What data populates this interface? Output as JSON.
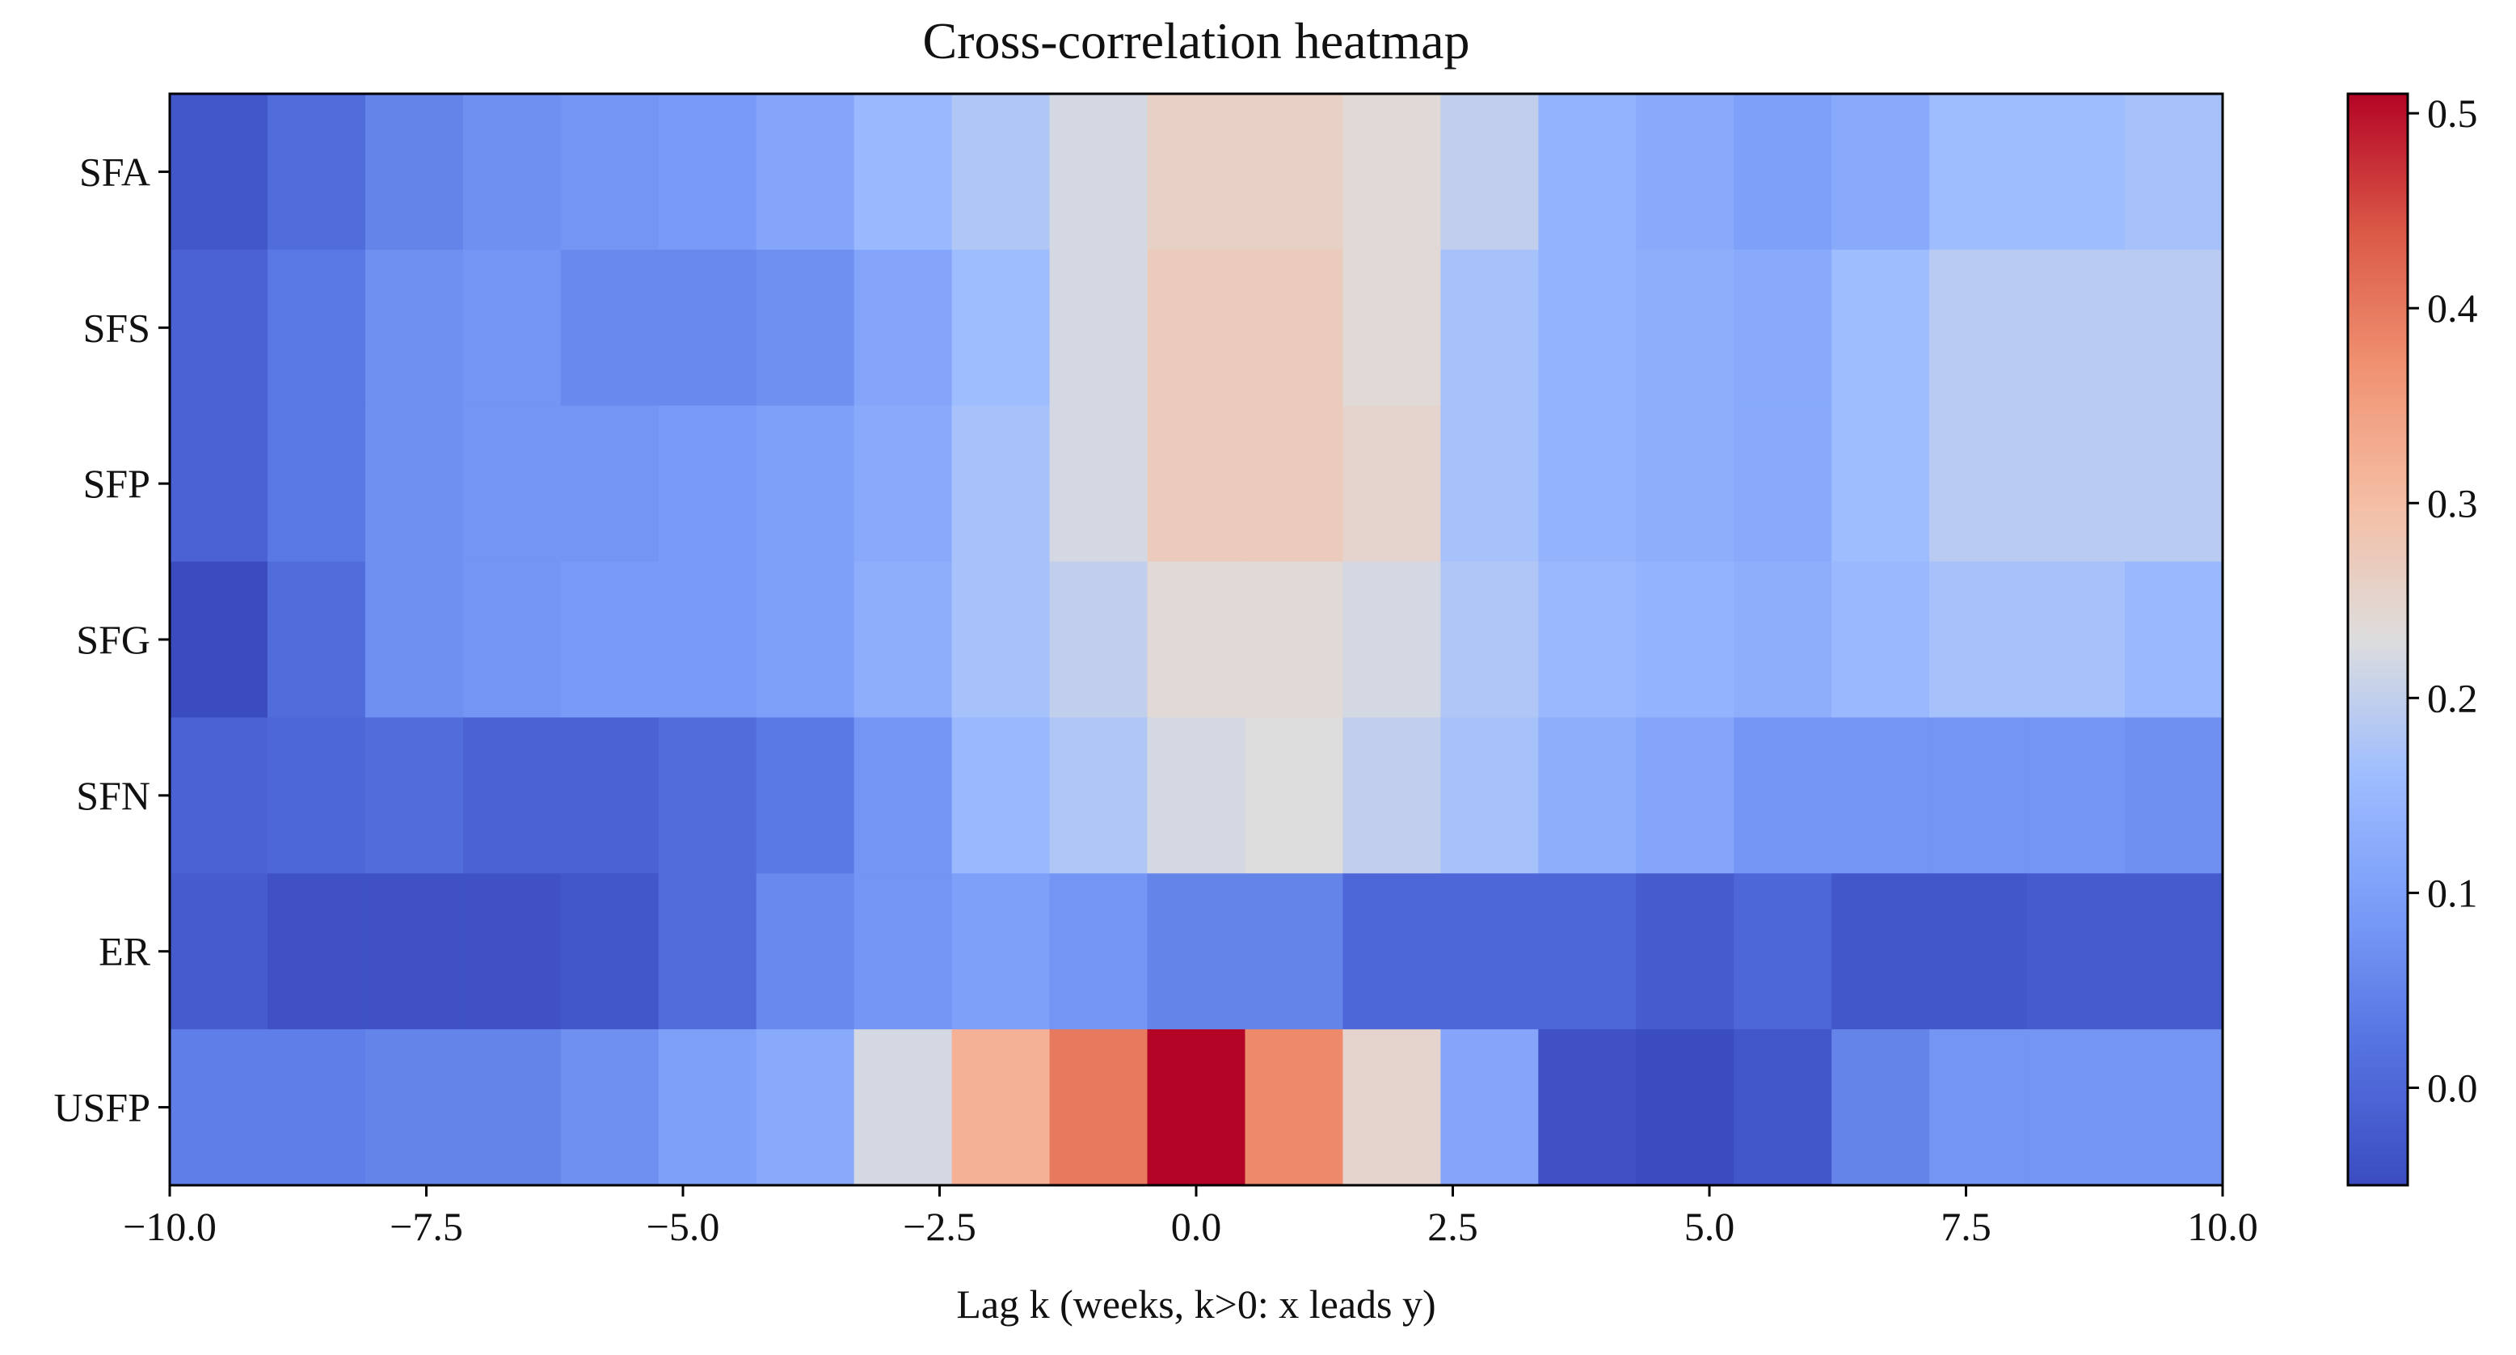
{
  "chart_data": {
    "type": "heatmap",
    "title": "Cross-correlation heatmap",
    "xlabel": "Lag k (weeks, k>0: x leads y)",
    "ylabel": "",
    "xlim": [
      -10.0,
      10.0
    ],
    "x_ticks": [
      -10.0,
      -7.5,
      -5.0,
      -2.5,
      0.0,
      2.5,
      5.0,
      7.5,
      10.0
    ],
    "x_tick_labels": [
      "−10.0",
      "−7.5",
      "−5.0",
      "−2.5",
      "0.0",
      "2.5",
      "5.0",
      "7.5",
      "10.0"
    ],
    "lags": [
      -10,
      -9,
      -8,
      -7,
      -6,
      -5,
      -4,
      -3,
      -2,
      -1,
      0,
      1,
      2,
      3,
      4,
      5,
      6,
      7,
      8,
      9,
      10
    ],
    "rows": [
      "SFA",
      "SFS",
      "SFP",
      "SFG",
      "SFN",
      "ER",
      "USFP"
    ],
    "values": [
      [
        -0.03,
        0.01,
        0.05,
        0.07,
        0.08,
        0.09,
        0.11,
        0.15,
        0.18,
        0.22,
        0.26,
        0.26,
        0.24,
        0.2,
        0.14,
        0.12,
        0.1,
        0.12,
        0.16,
        0.16,
        0.17
      ],
      [
        -0.01,
        0.03,
        0.07,
        0.08,
        0.06,
        0.06,
        0.07,
        0.11,
        0.16,
        0.22,
        0.27,
        0.27,
        0.24,
        0.17,
        0.14,
        0.13,
        0.12,
        0.16,
        0.19,
        0.19,
        0.19
      ],
      [
        -0.01,
        0.03,
        0.07,
        0.08,
        0.08,
        0.09,
        0.1,
        0.12,
        0.17,
        0.22,
        0.27,
        0.27,
        0.25,
        0.17,
        0.14,
        0.13,
        0.12,
        0.16,
        0.19,
        0.19,
        0.19
      ],
      [
        -0.05,
        0.01,
        0.07,
        0.08,
        0.09,
        0.09,
        0.1,
        0.13,
        0.17,
        0.2,
        0.24,
        0.24,
        0.22,
        0.18,
        0.15,
        0.14,
        0.13,
        0.15,
        0.17,
        0.17,
        0.15
      ],
      [
        -0.01,
        0.0,
        0.01,
        -0.01,
        -0.01,
        0.01,
        0.03,
        0.08,
        0.15,
        0.18,
        0.22,
        0.23,
        0.2,
        0.17,
        0.13,
        0.11,
        0.08,
        0.08,
        0.08,
        0.08,
        0.07
      ],
      [
        -0.02,
        -0.04,
        -0.04,
        -0.04,
        -0.03,
        0.01,
        0.06,
        0.08,
        0.1,
        0.08,
        0.05,
        0.05,
        0.0,
        0.0,
        0.0,
        -0.02,
        0.0,
        -0.03,
        -0.03,
        -0.02,
        -0.02
      ],
      [
        0.04,
        0.04,
        0.05,
        0.05,
        0.07,
        0.1,
        0.12,
        0.22,
        0.32,
        0.4,
        0.51,
        0.38,
        0.25,
        0.11,
        -0.04,
        -0.05,
        -0.03,
        0.05,
        0.08,
        0.08,
        0.08
      ]
    ],
    "colorbar": {
      "vmin": -0.05,
      "vmax": 0.51,
      "ticks": [
        0.0,
        0.1,
        0.2,
        0.3,
        0.4,
        0.5
      ],
      "tick_labels": [
        "0.0",
        "0.1",
        "0.2",
        "0.3",
        "0.4",
        "0.5"
      ],
      "colormap": "coolwarm"
    }
  }
}
